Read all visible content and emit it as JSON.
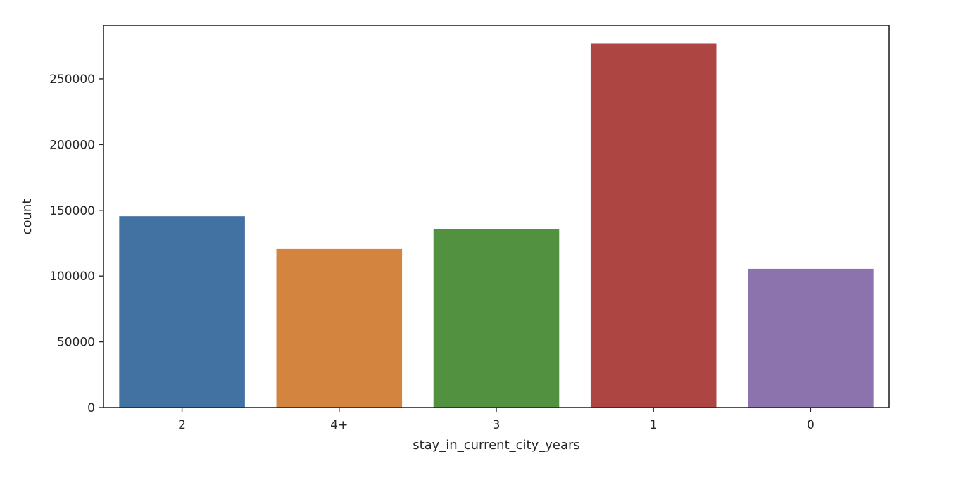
{
  "chart_data": {
    "type": "bar",
    "categories": [
      "2",
      "4+",
      "3",
      "1",
      "0"
    ],
    "values": [
      145500,
      120500,
      135500,
      277000,
      105500
    ],
    "colors": [
      "#4272a1",
      "#d3843f",
      "#52913f",
      "#ad4542",
      "#8d73ae"
    ],
    "xlabel": "stay_in_current_city_years",
    "ylabel": "count",
    "ylim": [
      0,
      290650
    ],
    "yticks": [
      0,
      50000,
      100000,
      150000,
      200000,
      250000
    ],
    "ytick_labels": [
      "0",
      "50000",
      "100000",
      "150000",
      "200000",
      "250000"
    ],
    "grid": false,
    "legend": "none"
  }
}
